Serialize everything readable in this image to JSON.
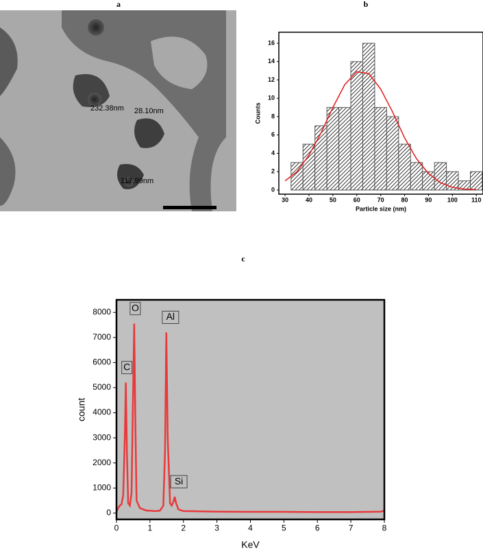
{
  "chart_data": [
    {
      "type": "image",
      "title": "a",
      "annotations": [
        "232.38nm",
        "28.10nm",
        "117.99nm"
      ]
    },
    {
      "type": "histogram",
      "title": "b",
      "x_label": "Particle size (nm)",
      "y_label": "Counts",
      "bins": [
        32.5,
        37.5,
        42.5,
        47.5,
        52.5,
        57.5,
        62.5,
        67.5,
        72.5,
        77.5,
        82.5,
        87.5,
        92.5,
        97.5,
        102.5,
        107.5,
        112.5
      ],
      "values": [
        3,
        5,
        7,
        9,
        9,
        14,
        16,
        9,
        8,
        5,
        3,
        2,
        3,
        2,
        1,
        2
      ],
      "color": "#555555",
      "fit": {
        "color": "#e0191b",
        "x": [
          30,
          35,
          40,
          45,
          50,
          55,
          60,
          65,
          70,
          75,
          80,
          85,
          90,
          95,
          100,
          105,
          110
        ],
        "values": [
          1.0,
          2.0,
          3.8,
          6.2,
          9.0,
          11.5,
          12.9,
          12.7,
          11.0,
          8.5,
          5.7,
          3.4,
          1.8,
          0.8,
          0.3,
          0.1,
          0.05
        ]
      },
      "xlim": [
        27.4,
        112.8
      ],
      "xticks": [
        30,
        40,
        50,
        60,
        70,
        80,
        90,
        100,
        110
      ],
      "ylim": [
        -0.45,
        17.2
      ],
      "yticks": [
        0,
        2,
        4,
        6,
        8,
        10,
        12,
        14,
        16
      ]
    },
    {
      "type": "line",
      "title": "c",
      "x_label": "KeV",
      "y_label": "count",
      "color": "#e8393a",
      "x": [
        0,
        0.05,
        0.1,
        0.15,
        0.2,
        0.25,
        0.28,
        0.31,
        0.35,
        0.4,
        0.45,
        0.5,
        0.53,
        0.56,
        0.6,
        0.7,
        0.8,
        0.9,
        1.0,
        1.1,
        1.2,
        1.3,
        1.4,
        1.45,
        1.49,
        1.53,
        1.6,
        1.65,
        1.7,
        1.74,
        1.78,
        1.85,
        2,
        3,
        4,
        5,
        6,
        7,
        7.9,
        8
      ],
      "values": [
        50,
        200,
        300,
        350,
        700,
        3000,
        5200,
        2500,
        400,
        300,
        800,
        5000,
        7550,
        4000,
        500,
        200,
        150,
        100,
        100,
        80,
        80,
        100,
        300,
        2500,
        7200,
        3000,
        400,
        300,
        450,
        650,
        400,
        150,
        80,
        60,
        50,
        50,
        40,
        40,
        60,
        100
      ],
      "peaks": [
        {
          "label": "C",
          "x": 0.28,
          "value": 5200
        },
        {
          "label": "O",
          "x": 0.53,
          "value": 7550
        },
        {
          "label": "Al",
          "x": 1.49,
          "value": 7200
        },
        {
          "label": "Si",
          "x": 1.74,
          "value": 650
        }
      ],
      "xlim": [
        0,
        8
      ],
      "xticks": [
        0,
        1,
        2,
        3,
        4,
        5,
        6,
        7,
        8
      ],
      "ylim": [
        -250,
        8500
      ],
      "yticks": [
        0,
        1000,
        2000,
        3000,
        4000,
        5000,
        6000,
        7000,
        8000
      ],
      "background": "#c0c0c0"
    }
  ]
}
